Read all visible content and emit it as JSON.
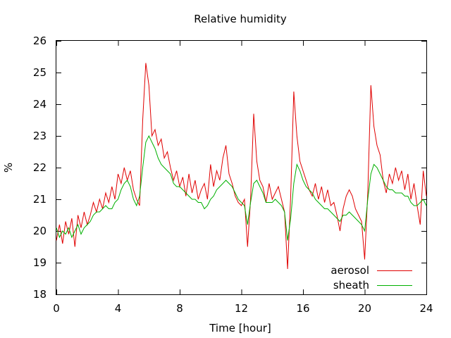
{
  "chart_data": {
    "type": "line",
    "title": "Relative humidity",
    "xlabel": "Time [hour]",
    "ylabel": "%",
    "xlim": [
      0,
      24
    ],
    "ylim": [
      18,
      26
    ],
    "xticks": [
      0,
      4,
      8,
      12,
      16,
      20,
      24
    ],
    "yticks": [
      18,
      19,
      20,
      21,
      22,
      23,
      24,
      25,
      26
    ],
    "grid": false,
    "legend_position": "bottom-right",
    "series": [
      {
        "name": "aerosol",
        "color": "#e00000",
        "points": [
          [
            0.0,
            19.7
          ],
          [
            0.2,
            20.2
          ],
          [
            0.4,
            19.6
          ],
          [
            0.6,
            20.3
          ],
          [
            0.8,
            19.9
          ],
          [
            1.0,
            20.4
          ],
          [
            1.2,
            19.5
          ],
          [
            1.4,
            20.5
          ],
          [
            1.6,
            20.1
          ],
          [
            1.8,
            20.6
          ],
          [
            2.0,
            20.2
          ],
          [
            2.2,
            20.5
          ],
          [
            2.4,
            20.9
          ],
          [
            2.6,
            20.6
          ],
          [
            2.8,
            21.0
          ],
          [
            3.0,
            20.7
          ],
          [
            3.2,
            21.2
          ],
          [
            3.4,
            20.9
          ],
          [
            3.6,
            21.4
          ],
          [
            3.8,
            21.0
          ],
          [
            4.0,
            21.8
          ],
          [
            4.2,
            21.5
          ],
          [
            4.4,
            22.0
          ],
          [
            4.6,
            21.6
          ],
          [
            4.8,
            21.9
          ],
          [
            5.0,
            21.3
          ],
          [
            5.2,
            21.0
          ],
          [
            5.4,
            20.8
          ],
          [
            5.6,
            23.5
          ],
          [
            5.8,
            25.3
          ],
          [
            6.0,
            24.6
          ],
          [
            6.2,
            23.0
          ],
          [
            6.4,
            23.2
          ],
          [
            6.6,
            22.7
          ],
          [
            6.8,
            22.9
          ],
          [
            7.0,
            22.3
          ],
          [
            7.2,
            22.5
          ],
          [
            7.4,
            22.0
          ],
          [
            7.6,
            21.6
          ],
          [
            7.8,
            21.9
          ],
          [
            8.0,
            21.4
          ],
          [
            8.2,
            21.7
          ],
          [
            8.4,
            21.1
          ],
          [
            8.6,
            21.8
          ],
          [
            8.8,
            21.2
          ],
          [
            9.0,
            21.6
          ],
          [
            9.2,
            21.0
          ],
          [
            9.4,
            21.3
          ],
          [
            9.6,
            21.5
          ],
          [
            9.8,
            21.0
          ],
          [
            10.0,
            22.1
          ],
          [
            10.2,
            21.4
          ],
          [
            10.4,
            21.9
          ],
          [
            10.6,
            21.6
          ],
          [
            10.8,
            22.3
          ],
          [
            11.0,
            22.7
          ],
          [
            11.2,
            21.8
          ],
          [
            11.4,
            21.5
          ],
          [
            11.6,
            21.1
          ],
          [
            11.8,
            20.9
          ],
          [
            12.0,
            20.8
          ],
          [
            12.2,
            21.0
          ],
          [
            12.4,
            19.5
          ],
          [
            12.6,
            21.0
          ],
          [
            12.8,
            23.7
          ],
          [
            13.0,
            22.2
          ],
          [
            13.2,
            21.6
          ],
          [
            13.4,
            21.4
          ],
          [
            13.6,
            20.9
          ],
          [
            13.8,
            21.5
          ],
          [
            14.0,
            21.0
          ],
          [
            14.2,
            21.2
          ],
          [
            14.4,
            21.4
          ],
          [
            14.6,
            21.0
          ],
          [
            14.8,
            20.6
          ],
          [
            15.0,
            18.8
          ],
          [
            15.2,
            21.1
          ],
          [
            15.4,
            24.4
          ],
          [
            15.6,
            23.0
          ],
          [
            15.8,
            22.2
          ],
          [
            16.0,
            21.9
          ],
          [
            16.2,
            21.6
          ],
          [
            16.4,
            21.3
          ],
          [
            16.6,
            21.1
          ],
          [
            16.8,
            21.5
          ],
          [
            17.0,
            21.0
          ],
          [
            17.2,
            21.4
          ],
          [
            17.4,
            20.9
          ],
          [
            17.6,
            21.3
          ],
          [
            17.8,
            20.8
          ],
          [
            18.0,
            20.9
          ],
          [
            18.2,
            20.5
          ],
          [
            18.4,
            20.0
          ],
          [
            18.6,
            20.7
          ],
          [
            18.8,
            21.1
          ],
          [
            19.0,
            21.3
          ],
          [
            19.2,
            21.1
          ],
          [
            19.4,
            20.7
          ],
          [
            19.6,
            20.5
          ],
          [
            19.8,
            20.3
          ],
          [
            20.0,
            19.1
          ],
          [
            20.2,
            21.2
          ],
          [
            20.4,
            24.6
          ],
          [
            20.6,
            23.3
          ],
          [
            20.8,
            22.7
          ],
          [
            21.0,
            22.4
          ],
          [
            21.2,
            21.6
          ],
          [
            21.4,
            21.2
          ],
          [
            21.6,
            21.8
          ],
          [
            21.8,
            21.5
          ],
          [
            22.0,
            22.0
          ],
          [
            22.2,
            21.6
          ],
          [
            22.4,
            21.9
          ],
          [
            22.6,
            21.3
          ],
          [
            22.8,
            21.8
          ],
          [
            23.0,
            21.0
          ],
          [
            23.2,
            21.5
          ],
          [
            23.4,
            20.8
          ],
          [
            23.6,
            20.2
          ],
          [
            23.8,
            21.9
          ],
          [
            24.0,
            21.1
          ]
        ]
      },
      {
        "name": "sheath",
        "color": "#00b000",
        "points": [
          [
            0.0,
            20.1
          ],
          [
            0.2,
            19.8
          ],
          [
            0.4,
            20.0
          ],
          [
            0.6,
            19.9
          ],
          [
            0.8,
            20.1
          ],
          [
            1.0,
            19.8
          ],
          [
            1.2,
            20.0
          ],
          [
            1.4,
            20.2
          ],
          [
            1.6,
            19.9
          ],
          [
            1.8,
            20.1
          ],
          [
            2.0,
            20.2
          ],
          [
            2.2,
            20.3
          ],
          [
            2.4,
            20.5
          ],
          [
            2.6,
            20.6
          ],
          [
            2.8,
            20.6
          ],
          [
            3.0,
            20.7
          ],
          [
            3.2,
            20.8
          ],
          [
            3.4,
            20.7
          ],
          [
            3.6,
            20.7
          ],
          [
            3.8,
            20.9
          ],
          [
            4.0,
            21.0
          ],
          [
            4.2,
            21.3
          ],
          [
            4.4,
            21.5
          ],
          [
            4.6,
            21.6
          ],
          [
            4.8,
            21.4
          ],
          [
            5.0,
            21.0
          ],
          [
            5.2,
            20.8
          ],
          [
            5.4,
            21.1
          ],
          [
            5.6,
            22.0
          ],
          [
            5.8,
            22.8
          ],
          [
            6.0,
            23.0
          ],
          [
            6.2,
            22.8
          ],
          [
            6.4,
            22.6
          ],
          [
            6.6,
            22.3
          ],
          [
            6.8,
            22.1
          ],
          [
            7.0,
            22.0
          ],
          [
            7.2,
            21.9
          ],
          [
            7.4,
            21.8
          ],
          [
            7.6,
            21.5
          ],
          [
            7.8,
            21.4
          ],
          [
            8.0,
            21.4
          ],
          [
            8.2,
            21.3
          ],
          [
            8.4,
            21.2
          ],
          [
            8.6,
            21.1
          ],
          [
            8.8,
            21.0
          ],
          [
            9.0,
            21.0
          ],
          [
            9.2,
            20.9
          ],
          [
            9.4,
            20.9
          ],
          [
            9.6,
            20.7
          ],
          [
            9.8,
            20.8
          ],
          [
            10.0,
            21.0
          ],
          [
            10.2,
            21.1
          ],
          [
            10.4,
            21.3
          ],
          [
            10.6,
            21.4
          ],
          [
            10.8,
            21.5
          ],
          [
            11.0,
            21.6
          ],
          [
            11.2,
            21.5
          ],
          [
            11.4,
            21.4
          ],
          [
            11.6,
            21.2
          ],
          [
            11.8,
            21.0
          ],
          [
            12.0,
            20.9
          ],
          [
            12.2,
            20.8
          ],
          [
            12.4,
            20.2
          ],
          [
            12.6,
            20.9
          ],
          [
            12.8,
            21.5
          ],
          [
            13.0,
            21.6
          ],
          [
            13.2,
            21.4
          ],
          [
            13.4,
            21.2
          ],
          [
            13.6,
            20.9
          ],
          [
            13.8,
            20.9
          ],
          [
            14.0,
            20.9
          ],
          [
            14.2,
            21.0
          ],
          [
            14.4,
            20.9
          ],
          [
            14.6,
            20.8
          ],
          [
            14.8,
            20.6
          ],
          [
            15.0,
            19.7
          ],
          [
            15.2,
            20.4
          ],
          [
            15.4,
            21.5
          ],
          [
            15.6,
            22.1
          ],
          [
            15.8,
            21.9
          ],
          [
            16.0,
            21.6
          ],
          [
            16.2,
            21.4
          ],
          [
            16.4,
            21.3
          ],
          [
            16.6,
            21.2
          ],
          [
            16.8,
            21.0
          ],
          [
            17.0,
            20.9
          ],
          [
            17.2,
            20.8
          ],
          [
            17.4,
            20.7
          ],
          [
            17.6,
            20.7
          ],
          [
            17.8,
            20.6
          ],
          [
            18.0,
            20.5
          ],
          [
            18.2,
            20.4
          ],
          [
            18.4,
            20.3
          ],
          [
            18.6,
            20.5
          ],
          [
            18.8,
            20.5
          ],
          [
            19.0,
            20.6
          ],
          [
            19.2,
            20.5
          ],
          [
            19.4,
            20.4
          ],
          [
            19.6,
            20.3
          ],
          [
            19.8,
            20.2
          ],
          [
            20.0,
            20.0
          ],
          [
            20.2,
            21.0
          ],
          [
            20.4,
            21.8
          ],
          [
            20.6,
            22.1
          ],
          [
            20.8,
            22.0
          ],
          [
            21.0,
            21.8
          ],
          [
            21.2,
            21.6
          ],
          [
            21.4,
            21.4
          ],
          [
            21.6,
            21.3
          ],
          [
            21.8,
            21.3
          ],
          [
            22.0,
            21.2
          ],
          [
            22.2,
            21.2
          ],
          [
            22.4,
            21.2
          ],
          [
            22.6,
            21.1
          ],
          [
            22.8,
            21.1
          ],
          [
            23.0,
            20.9
          ],
          [
            23.2,
            20.8
          ],
          [
            23.4,
            20.8
          ],
          [
            23.6,
            20.9
          ],
          [
            23.8,
            21.0
          ],
          [
            24.0,
            20.8
          ]
        ]
      }
    ]
  }
}
